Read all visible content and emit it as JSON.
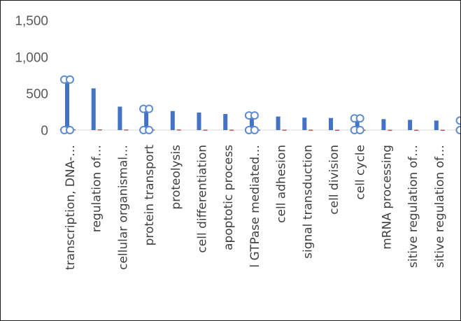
{
  "chart_data": {
    "type": "bar",
    "ylim": [
      0,
      1500
    ],
    "y_ticks": [
      "0",
      "500",
      "1,000",
      "1,500"
    ],
    "y_tick_values": [
      0,
      500,
      1000,
      1500
    ],
    "categories": [
      "transcription, DNA-…",
      "regulation of…",
      "cellular organismal…",
      "protein transport",
      "proteolysis",
      "cell differentiation",
      "apoptotic process",
      "l GTPase mediated…",
      "cell adhesion",
      "signal transduction",
      "cell division",
      "cell cycle",
      "mRNA processing",
      "sitive regulation of…",
      "sitive regulation of…"
    ],
    "series": [
      {
        "values": [
          690,
          570,
          320,
          290,
          260,
          240,
          220,
          200,
          185,
          170,
          165,
          160,
          150,
          140,
          130
        ],
        "color": "#4472c4"
      },
      {
        "values": [
          10,
          10,
          8,
          8,
          8,
          6,
          6,
          6,
          6,
          6,
          5,
          5,
          5,
          5,
          5
        ],
        "color": "#c0504d"
      }
    ],
    "selected_series_markers": [
      0,
      3,
      7,
      11,
      15
    ],
    "grid": false,
    "legend": "none"
  }
}
